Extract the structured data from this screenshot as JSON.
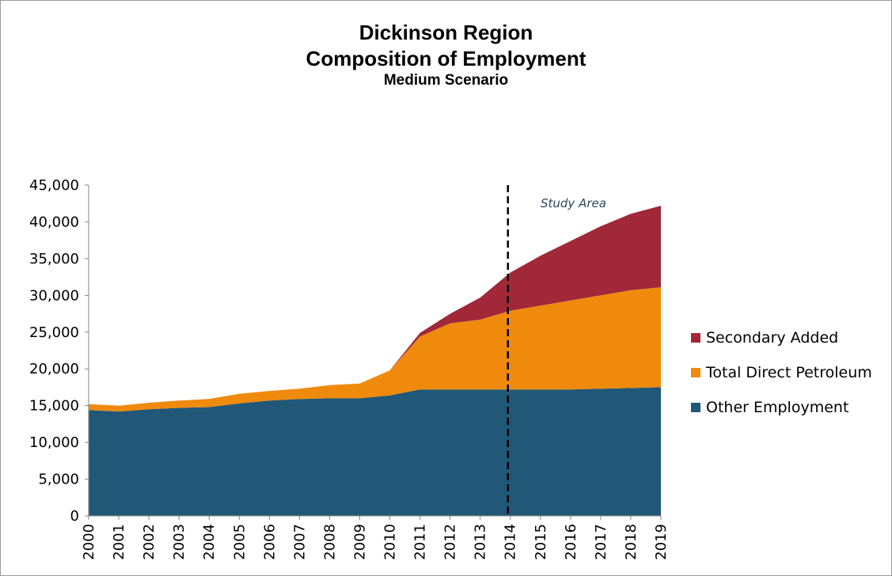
{
  "title": "Dickinson Region",
  "subtitle": "Composition of Employment",
  "scenario": "Medium Scenario",
  "annotation": "Study Area",
  "chart_data": {
    "type": "area",
    "stacked": true,
    "x": [
      2000,
      2001,
      2002,
      2003,
      2004,
      2005,
      2006,
      2007,
      2008,
      2009,
      2010,
      2011,
      2012,
      2013,
      2014,
      2015,
      2016,
      2017,
      2018,
      2019
    ],
    "series": [
      {
        "name": "Other Employment",
        "color": "#215878",
        "values": [
          14400,
          14200,
          14500,
          14700,
          14800,
          15300,
          15700,
          15900,
          16000,
          16000,
          16400,
          17200,
          17200,
          17200,
          17200,
          17200,
          17200,
          17300,
          17400,
          17500
        ]
      },
      {
        "name": "Total Direct Petroleum",
        "color": "#f08a0c",
        "values": [
          800,
          800,
          900,
          1000,
          1100,
          1300,
          1300,
          1400,
          1800,
          2000,
          3400,
          7200,
          9000,
          9500,
          10700,
          11400,
          12100,
          12700,
          13300,
          13600
        ]
      },
      {
        "name": "Secondary Added",
        "color": "#a02838",
        "values": [
          0,
          0,
          0,
          0,
          0,
          0,
          0,
          0,
          0,
          0,
          0,
          500,
          1300,
          3000,
          5200,
          6800,
          8100,
          9400,
          10400,
          11100
        ]
      }
    ],
    "ylim": [
      0,
      45000
    ],
    "yticks": [
      0,
      5000,
      10000,
      15000,
      20000,
      25000,
      30000,
      35000,
      40000,
      45000
    ],
    "ytick_labels": [
      "0",
      "5,000",
      "10,000",
      "15,000",
      "20,000",
      "25,000",
      "30,000",
      "35,000",
      "40,000",
      "45,000"
    ],
    "marker_year": 2014,
    "legend_position": "right",
    "grid": false
  }
}
